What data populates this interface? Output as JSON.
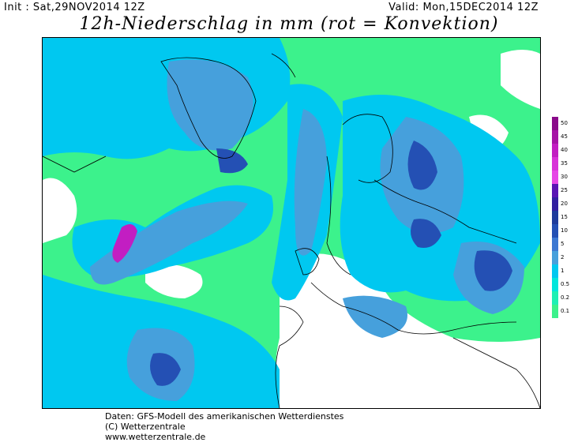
{
  "header": {
    "init": "Init : Sat,29NOV2014 12Z",
    "valid": "Valid: Mon,15DEC2014 12Z",
    "title": "12h-Niederschlag in mm (rot = Konvektion)"
  },
  "legend": {
    "levels": [
      {
        "label": "50",
        "color": "#8a0a8a"
      },
      {
        "label": "45",
        "color": "#a614a6"
      },
      {
        "label": "40",
        "color": "#c21ec2"
      },
      {
        "label": "35",
        "color": "#d832d8"
      },
      {
        "label": "30",
        "color": "#e646e6"
      },
      {
        "label": "25",
        "color": "#5a14b4"
      },
      {
        "label": "20",
        "color": "#321ea0"
      },
      {
        "label": "15",
        "color": "#1e3c9c"
      },
      {
        "label": "10",
        "color": "#2450b4"
      },
      {
        "label": "5",
        "color": "#3c78d2"
      },
      {
        "label": "2",
        "color": "#46a0dc"
      },
      {
        "label": "1",
        "color": "#00c8f0"
      },
      {
        "label": "0.5",
        "color": "#00e6dc"
      },
      {
        "label": "0.2",
        "color": "#1ef0b4"
      },
      {
        "label": "0.1",
        "color": "#3cf28c"
      }
    ]
  },
  "footer": {
    "line1": "Daten: GFS-Modell des amerikanischen Wetterdienstes",
    "line2": "(C) Wetterzentrale",
    "line3": "www.wetterzentrale.de"
  }
}
